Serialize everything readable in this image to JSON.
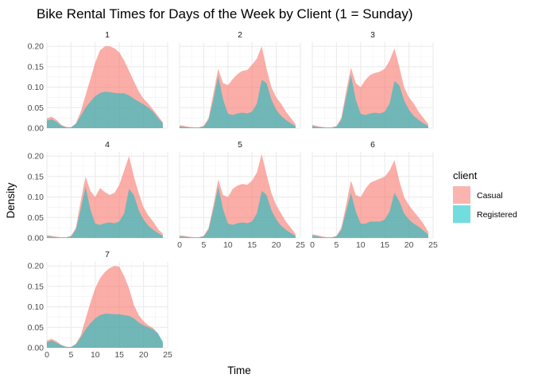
{
  "chart_data": {
    "type": "area",
    "title": "Bike Rental Times for Days of the Week by Client (1 = Sunday)",
    "xlabel": "Time",
    "ylabel": "Density",
    "xlim": [
      0,
      24
    ],
    "ylim": [
      0,
      0.21
    ],
    "x_ticks": [
      "0",
      "5",
      "10",
      "15",
      "20",
      "25"
    ],
    "y_ticks": [
      "0.00",
      "0.05",
      "0.10",
      "0.15",
      "0.20"
    ],
    "grid": true,
    "stacked": true,
    "legend": {
      "title": "client",
      "position": "right",
      "entries": [
        {
          "label": "Casual",
          "color": "#f8766d"
        },
        {
          "label": "Registered",
          "color": "#00bfc4"
        }
      ]
    },
    "x": [
      0,
      1,
      2,
      3,
      4,
      5,
      6,
      7,
      8,
      9,
      10,
      11,
      12,
      13,
      14,
      15,
      16,
      17,
      18,
      19,
      20,
      21,
      22,
      23,
      24
    ],
    "facets": [
      {
        "label": "1",
        "series": [
          {
            "name": "Registered",
            "values": [
              0.018,
              0.022,
              0.015,
              0.006,
              0.002,
              0.002,
              0.01,
              0.03,
              0.05,
              0.065,
              0.078,
              0.086,
              0.089,
              0.088,
              0.086,
              0.085,
              0.085,
              0.08,
              0.072,
              0.065,
              0.058,
              0.05,
              0.04,
              0.025,
              0.012
            ]
          },
          {
            "name": "Casual",
            "values": [
              0.024,
              0.028,
              0.02,
              0.008,
              0.003,
              0.002,
              0.012,
              0.04,
              0.08,
              0.12,
              0.16,
              0.19,
              0.2,
              0.2,
              0.195,
              0.185,
              0.165,
              0.14,
              0.115,
              0.09,
              0.072,
              0.06,
              0.045,
              0.03,
              0.014
            ]
          }
        ]
      },
      {
        "label": "2",
        "series": [
          {
            "name": "Registered",
            "values": [
              0.004,
              0.003,
              0.002,
              0.001,
              0.001,
              0.004,
              0.02,
              0.07,
              0.128,
              0.07,
              0.035,
              0.032,
              0.036,
              0.038,
              0.036,
              0.04,
              0.06,
              0.118,
              0.11,
              0.07,
              0.045,
              0.03,
              0.02,
              0.012,
              0.005
            ]
          },
          {
            "name": "Casual",
            "values": [
              0.007,
              0.005,
              0.003,
              0.002,
              0.002,
              0.006,
              0.025,
              0.085,
              0.145,
              0.11,
              0.105,
              0.12,
              0.132,
              0.14,
              0.142,
              0.155,
              0.17,
              0.2,
              0.145,
              0.1,
              0.075,
              0.06,
              0.04,
              0.025,
              0.01
            ]
          }
        ]
      },
      {
        "label": "3",
        "series": [
          {
            "name": "Registered",
            "values": [
              0.005,
              0.003,
              0.002,
              0.001,
              0.001,
              0.004,
              0.02,
              0.075,
              0.13,
              0.07,
              0.035,
              0.032,
              0.036,
              0.038,
              0.036,
              0.04,
              0.06,
              0.115,
              0.105,
              0.068,
              0.045,
              0.03,
              0.02,
              0.012,
              0.005
            ]
          },
          {
            "name": "Casual",
            "values": [
              0.008,
              0.005,
              0.003,
              0.002,
              0.002,
              0.005,
              0.025,
              0.09,
              0.148,
              0.11,
              0.1,
              0.118,
              0.13,
              0.135,
              0.138,
              0.145,
              0.165,
              0.195,
              0.15,
              0.1,
              0.075,
              0.06,
              0.04,
              0.025,
              0.01
            ]
          }
        ]
      },
      {
        "label": "4",
        "series": [
          {
            "name": "Registered",
            "values": [
              0.004,
              0.003,
              0.002,
              0.001,
              0.001,
              0.004,
              0.02,
              0.07,
              0.125,
              0.07,
              0.035,
              0.032,
              0.036,
              0.038,
              0.036,
              0.04,
              0.06,
              0.12,
              0.105,
              0.068,
              0.045,
              0.03,
              0.02,
              0.012,
              0.005
            ]
          },
          {
            "name": "Casual",
            "values": [
              0.007,
              0.005,
              0.003,
              0.002,
              0.002,
              0.005,
              0.025,
              0.09,
              0.15,
              0.115,
              0.1,
              0.122,
              0.112,
              0.105,
              0.11,
              0.13,
              0.165,
              0.2,
              0.15,
              0.11,
              0.075,
              0.055,
              0.04,
              0.022,
              0.01
            ]
          }
        ]
      },
      {
        "label": "5",
        "series": [
          {
            "name": "Registered",
            "values": [
              0.004,
              0.003,
              0.002,
              0.001,
              0.001,
              0.004,
              0.02,
              0.07,
              0.125,
              0.07,
              0.035,
              0.032,
              0.036,
              0.038,
              0.036,
              0.04,
              0.06,
              0.115,
              0.105,
              0.068,
              0.045,
              0.03,
              0.02,
              0.012,
              0.005
            ]
          },
          {
            "name": "Casual",
            "values": [
              0.006,
              0.005,
              0.003,
              0.002,
              0.002,
              0.005,
              0.025,
              0.08,
              0.143,
              0.105,
              0.1,
              0.12,
              0.128,
              0.132,
              0.13,
              0.14,
              0.16,
              0.205,
              0.155,
              0.11,
              0.08,
              0.06,
              0.04,
              0.025,
              0.01
            ]
          }
        ]
      },
      {
        "label": "6",
        "series": [
          {
            "name": "Registered",
            "values": [
              0.006,
              0.004,
              0.002,
              0.001,
              0.001,
              0.004,
              0.02,
              0.065,
              0.11,
              0.065,
              0.035,
              0.035,
              0.04,
              0.04,
              0.04,
              0.045,
              0.065,
              0.11,
              0.09,
              0.06,
              0.045,
              0.035,
              0.028,
              0.018,
              0.008
            ]
          },
          {
            "name": "Casual",
            "values": [
              0.009,
              0.007,
              0.004,
              0.002,
              0.002,
              0.005,
              0.025,
              0.08,
              0.14,
              0.105,
              0.1,
              0.12,
              0.135,
              0.14,
              0.145,
              0.15,
              0.165,
              0.19,
              0.14,
              0.1,
              0.08,
              0.065,
              0.05,
              0.035,
              0.015
            ]
          }
        ]
      },
      {
        "label": "7",
        "series": [
          {
            "name": "Registered",
            "values": [
              0.013,
              0.018,
              0.012,
              0.006,
              0.002,
              0.002,
              0.008,
              0.025,
              0.045,
              0.06,
              0.072,
              0.08,
              0.083,
              0.083,
              0.082,
              0.082,
              0.08,
              0.078,
              0.072,
              0.062,
              0.055,
              0.05,
              0.045,
              0.035,
              0.015
            ]
          },
          {
            "name": "Casual",
            "values": [
              0.018,
              0.022,
              0.016,
              0.007,
              0.003,
              0.002,
              0.01,
              0.03,
              0.07,
              0.11,
              0.145,
              0.17,
              0.185,
              0.195,
              0.2,
              0.198,
              0.175,
              0.145,
              0.105,
              0.08,
              0.065,
              0.055,
              0.048,
              0.035,
              0.012
            ]
          }
        ]
      }
    ]
  }
}
